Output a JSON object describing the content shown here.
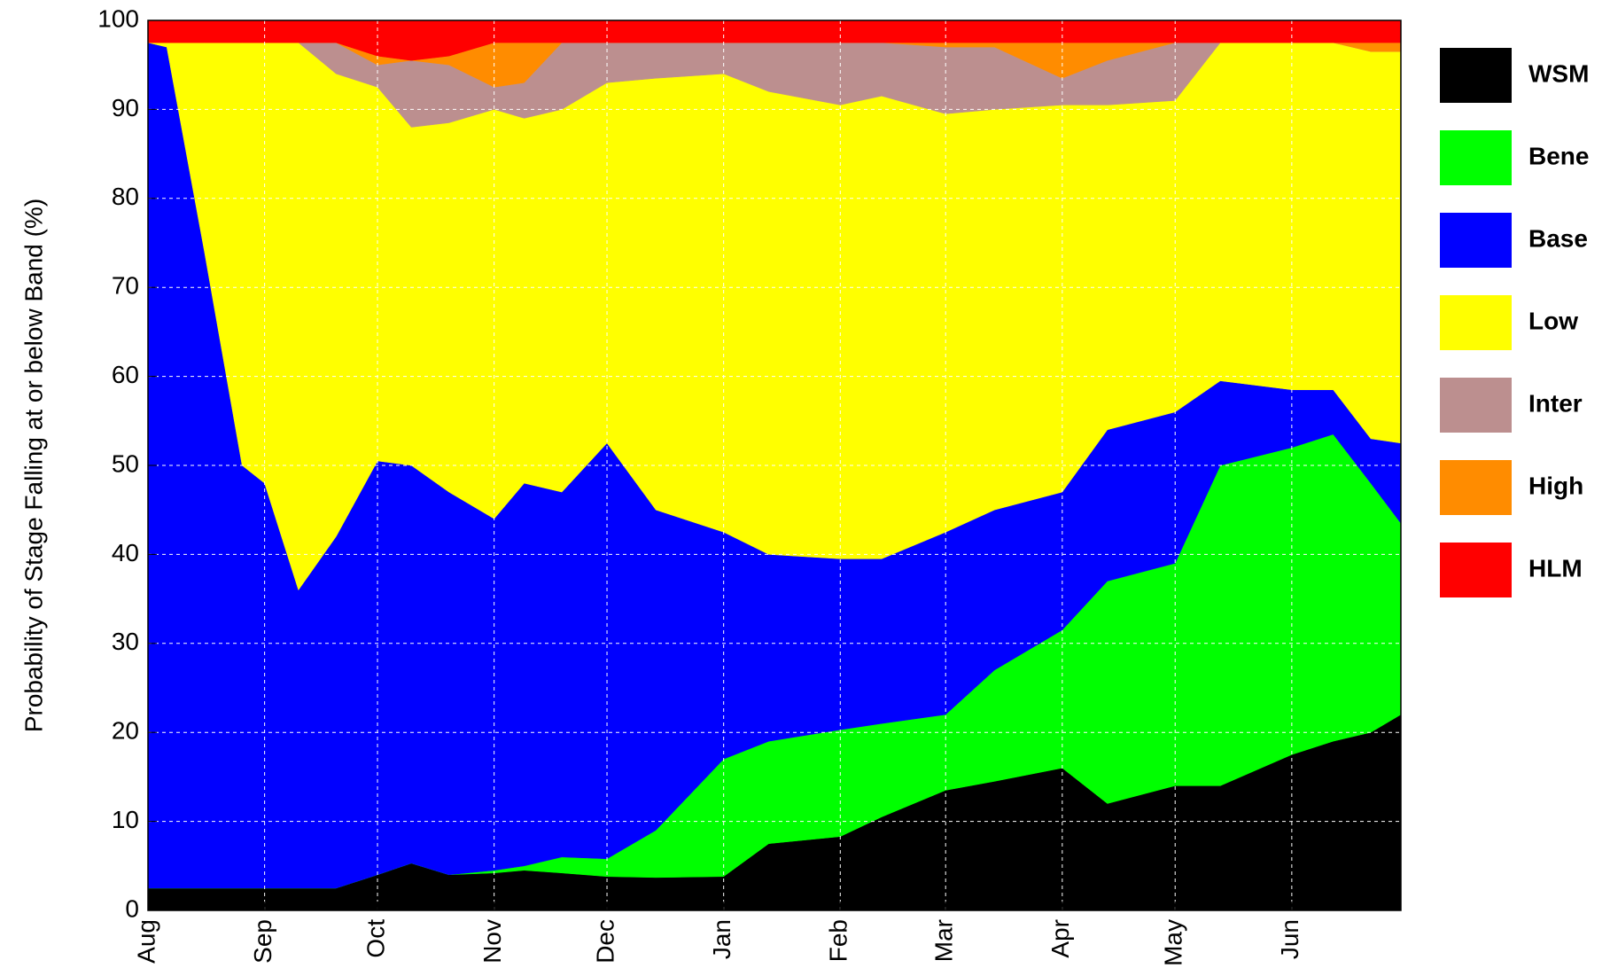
{
  "chart_data": {
    "type": "stacked_area",
    "ylabel": "Probability of Stage Falling at or below Band (%)",
    "x": [
      0,
      5,
      15,
      25,
      31,
      40,
      50,
      61,
      70,
      80,
      92,
      100,
      110,
      122,
      135,
      153,
      165,
      184,
      195,
      212,
      225,
      243,
      255,
      273,
      285,
      304,
      315,
      325,
      333
    ],
    "xlim": [
      0,
      333
    ],
    "xticks": [
      {
        "value": 0,
        "label": "Aug"
      },
      {
        "value": 31,
        "label": "Sep"
      },
      {
        "value": 61,
        "label": "Oct"
      },
      {
        "value": 92,
        "label": "Nov"
      },
      {
        "value": 122,
        "label": "Dec"
      },
      {
        "value": 153,
        "label": "Jan"
      },
      {
        "value": 184,
        "label": "Feb"
      },
      {
        "value": 212,
        "label": "Mar"
      },
      {
        "value": 243,
        "label": "Apr"
      },
      {
        "value": 273,
        "label": "May"
      },
      {
        "value": 304,
        "label": "Jun"
      }
    ],
    "ylim": [
      0,
      100
    ],
    "yticks": [
      0,
      10,
      20,
      30,
      40,
      50,
      60,
      70,
      80,
      90,
      100
    ],
    "grid": true,
    "legend": "right",
    "series": [
      {
        "name": "WSM",
        "color": "#000000",
        "values": [
          2.5,
          2.5,
          2.5,
          2.5,
          2.5,
          2.5,
          2.5,
          4,
          5.3,
          4,
          4.2,
          4.5,
          4.2,
          3.8,
          3.7,
          3.8,
          7.5,
          8.3,
          10.5,
          13.5,
          14.5,
          16,
          12,
          14,
          14,
          17.5,
          19,
          20,
          22
        ]
      },
      {
        "name": "Bene",
        "color": "#00ff00",
        "values": [
          0,
          0,
          0,
          0,
          0,
          0,
          0,
          0,
          0,
          0,
          0.3,
          0.5,
          1.8,
          2,
          5.3,
          13.2,
          11.5,
          12,
          10.5,
          8.5,
          12.5,
          15.5,
          25,
          25,
          36,
          34.5,
          34.5,
          28,
          21.5
        ]
      },
      {
        "name": "Base",
        "color": "#0000ff",
        "values": [
          95,
          94.5,
          71.5,
          47.5,
          45.5,
          33.5,
          39.5,
          46.5,
          44.7,
          43,
          39.5,
          43,
          41,
          46.7,
          36,
          25.5,
          21,
          19.2,
          18.5,
          20.5,
          18,
          15.5,
          17,
          17,
          9.5,
          6.5,
          5,
          5,
          9
        ]
      },
      {
        "name": "Low",
        "color": "#ffff00",
        "values": [
          0,
          0.5,
          23.5,
          47.5,
          49.5,
          61.5,
          52,
          42,
          38,
          41.5,
          46,
          41,
          43,
          40.5,
          48.5,
          51.5,
          52,
          51,
          52,
          47,
          45,
          43.5,
          36.5,
          35,
          38,
          39,
          39,
          43.5,
          44
        ]
      },
      {
        "name": "Inter",
        "color": "#bc8f8f",
        "values": [
          0,
          0,
          0,
          0,
          0,
          0,
          3.5,
          2.5,
          7.5,
          6.5,
          2.5,
          4,
          7.5,
          4.5,
          4,
          3.5,
          5.5,
          7,
          6,
          7.5,
          7,
          3,
          5,
          6.5,
          0,
          0,
          0,
          0,
          0
        ]
      },
      {
        "name": "High",
        "color": "#ff8c00",
        "values": [
          0,
          0,
          0,
          0,
          0,
          0,
          0,
          1,
          0,
          1,
          5,
          4.5,
          0,
          0,
          0,
          0,
          0,
          0,
          0,
          0.5,
          0.5,
          4,
          2,
          0,
          0,
          0,
          0,
          1,
          1
        ]
      },
      {
        "name": "HLM",
        "color": "#ff0000",
        "values": [
          2.5,
          2.5,
          2.5,
          2.5,
          2.5,
          2.5,
          2.5,
          4,
          4.5,
          4,
          2.5,
          2.5,
          2.5,
          2.5,
          2.5,
          2.5,
          2.5,
          2.5,
          2.5,
          2.5,
          2.5,
          2.5,
          2.5,
          2.5,
          2.5,
          2.5,
          2.5,
          2.5,
          2.5
        ]
      }
    ]
  }
}
